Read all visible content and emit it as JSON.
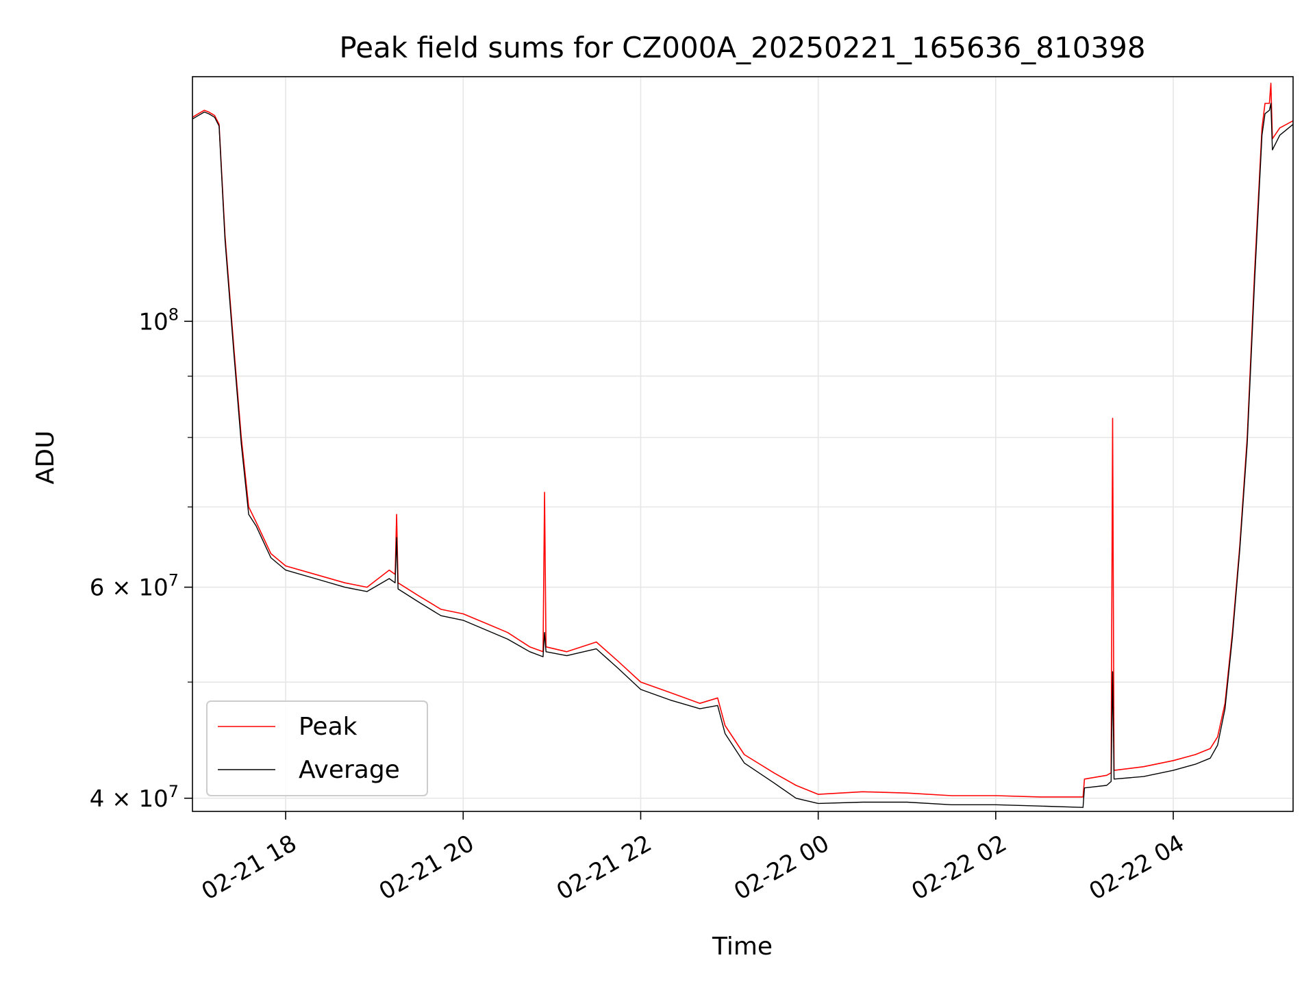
{
  "chart_data": {
    "type": "line",
    "title": "Peak field sums for CZ000A_20250221_165636_810398",
    "xlabel": "Time",
    "ylabel": "ADU",
    "y_scale": "log",
    "grid": true,
    "legend_position": "lower-left",
    "xlim": [
      "2025-02-21T16:57",
      "2025-02-22T05:21"
    ],
    "ylim": [
      39000000,
      160000000
    ],
    "x_ticks": [
      {
        "value": "2025-02-21T18:00",
        "label": "02-21 18"
      },
      {
        "value": "2025-02-21T20:00",
        "label": "02-21 20"
      },
      {
        "value": "2025-02-21T22:00",
        "label": "02-21 22"
      },
      {
        "value": "2025-02-22T00:00",
        "label": "02-22 00"
      },
      {
        "value": "2025-02-22T02:00",
        "label": "02-22 02"
      },
      {
        "value": "2025-02-22T04:00",
        "label": "02-22 04"
      }
    ],
    "y_ticks_major": [
      {
        "value": 40000000,
        "base": "4 × 10",
        "exp": "7"
      },
      {
        "value": 60000000,
        "base": "6 × 10",
        "exp": "7"
      },
      {
        "value": 100000000,
        "base": "10",
        "exp": "8"
      }
    ],
    "y_ticks_minor": [
      50000000,
      70000000,
      80000000,
      90000000
    ],
    "series": [
      {
        "name": "Peak",
        "color": "#ff0000",
        "x": [
          "2025-02-21T16:57",
          "2025-02-21T17:01",
          "2025-02-21T17:05",
          "2025-02-21T17:08",
          "2025-02-21T17:12",
          "2025-02-21T17:15",
          "2025-02-21T17:19",
          "2025-02-21T17:25",
          "2025-02-21T17:30",
          "2025-02-21T17:35",
          "2025-02-21T17:40",
          "2025-02-21T17:50",
          "2025-02-21T18:00",
          "2025-02-21T18:20",
          "2025-02-21T18:40",
          "2025-02-21T18:55",
          "2025-02-21T19:10",
          "2025-02-21T19:14",
          "2025-02-21T19:15",
          "2025-02-21T19:16",
          "2025-02-21T19:30",
          "2025-02-21T19:45",
          "2025-02-21T20:00",
          "2025-02-21T20:15",
          "2025-02-21T20:30",
          "2025-02-21T20:45",
          "2025-02-21T20:54",
          "2025-02-21T20:55",
          "2025-02-21T20:56",
          "2025-02-21T21:10",
          "2025-02-21T21:30",
          "2025-02-21T21:45",
          "2025-02-21T22:00",
          "2025-02-21T22:20",
          "2025-02-21T22:40",
          "2025-02-21T22:52",
          "2025-02-21T22:57",
          "2025-02-21T23:10",
          "2025-02-21T23:30",
          "2025-02-21T23:45",
          "2025-02-22T00:00",
          "2025-02-22T00:30",
          "2025-02-22T01:00",
          "2025-02-22T01:30",
          "2025-02-22T02:00",
          "2025-02-22T02:30",
          "2025-02-22T02:59",
          "2025-02-22T03:00",
          "2025-02-22T03:15",
          "2025-02-22T03:18",
          "2025-02-22T03:19",
          "2025-02-22T03:20",
          "2025-02-22T03:40",
          "2025-02-22T04:00",
          "2025-02-22T04:15",
          "2025-02-22T04:25",
          "2025-02-22T04:30",
          "2025-02-22T04:35",
          "2025-02-22T04:40",
          "2025-02-22T04:45",
          "2025-02-22T04:50",
          "2025-02-22T04:55",
          "2025-02-22T05:00",
          "2025-02-22T05:02",
          "2025-02-22T05:05",
          "2025-02-22T05:06",
          "2025-02-22T05:07",
          "2025-02-22T05:12",
          "2025-02-22T05:21"
        ],
        "y": [
          148000000,
          149000000,
          150000000,
          149500000,
          148500000,
          146000000,
          118000000,
          95000000,
          80000000,
          70000000,
          68000000,
          64000000,
          62500000,
          61500000,
          60500000,
          60000000,
          62000000,
          61500000,
          69000000,
          60500000,
          59000000,
          57500000,
          57000000,
          56000000,
          55000000,
          53500000,
          53000000,
          72000000,
          53500000,
          53000000,
          54000000,
          52000000,
          50000000,
          49000000,
          48000000,
          48500000,
          46000000,
          43500000,
          42000000,
          41000000,
          40300000,
          40500000,
          40400000,
          40200000,
          40200000,
          40100000,
          40100000,
          41500000,
          41800000,
          42000000,
          83000000,
          42200000,
          42500000,
          43000000,
          43500000,
          44000000,
          45000000,
          48000000,
          55000000,
          65000000,
          80000000,
          110000000,
          145000000,
          152000000,
          152000000,
          158000000,
          142000000,
          145000000,
          147000000
        ]
      },
      {
        "name": "Average",
        "color": "#000000",
        "x": [
          "2025-02-21T16:57",
          "2025-02-21T17:01",
          "2025-02-21T17:05",
          "2025-02-21T17:08",
          "2025-02-21T17:12",
          "2025-02-21T17:15",
          "2025-02-21T17:19",
          "2025-02-21T17:25",
          "2025-02-21T17:30",
          "2025-02-21T17:35",
          "2025-02-21T17:40",
          "2025-02-21T17:50",
          "2025-02-21T18:00",
          "2025-02-21T18:20",
          "2025-02-21T18:40",
          "2025-02-21T18:55",
          "2025-02-21T19:10",
          "2025-02-21T19:14",
          "2025-02-21T19:15",
          "2025-02-21T19:16",
          "2025-02-21T19:30",
          "2025-02-21T19:45",
          "2025-02-21T20:00",
          "2025-02-21T20:15",
          "2025-02-21T20:30",
          "2025-02-21T20:45",
          "2025-02-21T20:54",
          "2025-02-21T20:55",
          "2025-02-21T20:56",
          "2025-02-21T21:10",
          "2025-02-21T21:30",
          "2025-02-21T21:45",
          "2025-02-21T22:00",
          "2025-02-21T22:20",
          "2025-02-21T22:40",
          "2025-02-21T22:52",
          "2025-02-21T22:57",
          "2025-02-21T23:10",
          "2025-02-21T23:30",
          "2025-02-21T23:45",
          "2025-02-22T00:00",
          "2025-02-22T00:30",
          "2025-02-22T01:00",
          "2025-02-22T01:30",
          "2025-02-22T02:00",
          "2025-02-22T02:30",
          "2025-02-22T02:59",
          "2025-02-22T03:00",
          "2025-02-22T03:15",
          "2025-02-22T03:18",
          "2025-02-22T03:19",
          "2025-02-22T03:20",
          "2025-02-22T03:40",
          "2025-02-22T04:00",
          "2025-02-22T04:15",
          "2025-02-22T04:25",
          "2025-02-22T04:30",
          "2025-02-22T04:35",
          "2025-02-22T04:40",
          "2025-02-22T04:45",
          "2025-02-22T04:50",
          "2025-02-22T04:55",
          "2025-02-22T05:00",
          "2025-02-22T05:02",
          "2025-02-22T05:05",
          "2025-02-22T05:06",
          "2025-02-22T05:07",
          "2025-02-22T05:12",
          "2025-02-22T05:21"
        ],
        "y": [
          147500000,
          148500000,
          149500000,
          149000000,
          148000000,
          145500000,
          117000000,
          94000000,
          79000000,
          69000000,
          67500000,
          63500000,
          62000000,
          61000000,
          60000000,
          59500000,
          61000000,
          60500000,
          66000000,
          59800000,
          58300000,
          56800000,
          56300000,
          55300000,
          54300000,
          53000000,
          52500000,
          55000000,
          53000000,
          52600000,
          53300000,
          51300000,
          49300000,
          48300000,
          47500000,
          47800000,
          45300000,
          42800000,
          41200000,
          40000000,
          39600000,
          39700000,
          39700000,
          39500000,
          39500000,
          39400000,
          39300000,
          40800000,
          41000000,
          41300000,
          51000000,
          41500000,
          41700000,
          42200000,
          42700000,
          43200000,
          44300000,
          47500000,
          54500000,
          64500000,
          79000000,
          108000000,
          143000000,
          149000000,
          150000000,
          152000000,
          139000000,
          143000000,
          146000000
        ]
      }
    ]
  }
}
